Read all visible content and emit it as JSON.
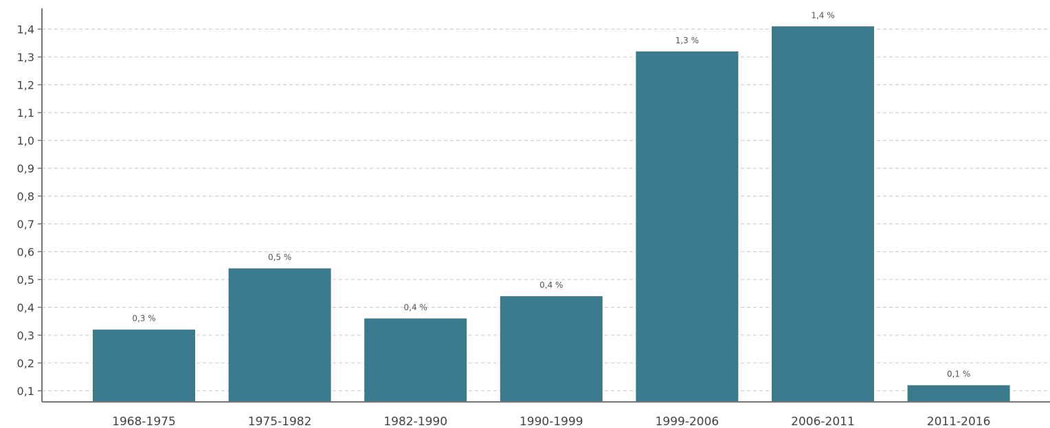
{
  "chart_data": {
    "type": "bar",
    "title": "",
    "xlabel": "",
    "ylabel": "",
    "categories": [
      "1968-1975",
      "1975-1982",
      "1982-1990",
      "1990-1999",
      "1999-2006",
      "2006-2011",
      "2011-2016"
    ],
    "values": [
      0.32,
      0.54,
      0.36,
      0.44,
      1.32,
      1.41,
      0.12
    ],
    "data_labels": [
      "0,3 %",
      "0,5 %",
      "0,4 %",
      "0,4 %",
      "1,3 %",
      "1,4 %",
      "0,1 %"
    ],
    "y_ticks": [
      0.1,
      0.2,
      0.3,
      0.4,
      0.5,
      0.6,
      0.7,
      0.8,
      0.9,
      1.0,
      1.1,
      1.2,
      1.3,
      1.4
    ],
    "y_tick_labels": [
      "0,1",
      "0,2",
      "0,3",
      "0,4",
      "0,5",
      "0,6",
      "0,7",
      "0,8",
      "0,9",
      "1,0",
      "1,1",
      "1,2",
      "1,3",
      "1,4"
    ],
    "ylim": [
      0.06,
      1.48
    ],
    "grid": true,
    "legend": "none",
    "bar_color": "#3b7a8c"
  }
}
